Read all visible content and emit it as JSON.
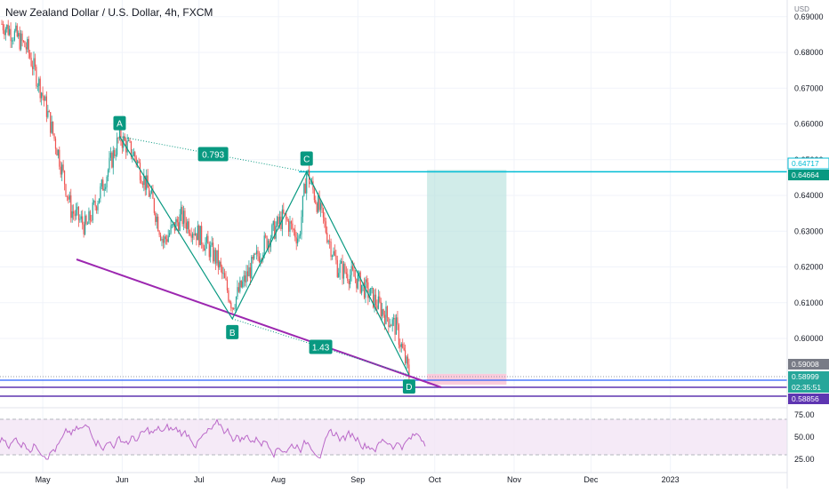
{
  "header": {
    "title": "New Zealand Dollar / U.S. Dollar, 4h, FXCM"
  },
  "axis": {
    "currency": "USD",
    "y_ticks": [
      "0.69000",
      "0.68000",
      "0.67000",
      "0.66000",
      "0.65000",
      "0.64000",
      "0.63000",
      "0.62000",
      "0.61000",
      "0.60000"
    ],
    "x_ticks": [
      "May",
      "Jun",
      "Jul",
      "Aug",
      "Sep",
      "Oct",
      "Nov",
      "Dec",
      "2023"
    ],
    "rsi_ticks": [
      "75.00",
      "50.00",
      "25.00"
    ]
  },
  "price_badges": {
    "target_upper": "0.64717",
    "target_lower": "0.64664",
    "last_close": "0.59008",
    "current": "0.58999",
    "countdown": "02:35:51",
    "stop": "0.58856"
  },
  "pattern_labels": {
    "A": "A",
    "B": "B",
    "C": "C",
    "D": "D",
    "ratio_ac": "0.793",
    "ratio_bd": "1.43"
  },
  "colors": {
    "bull": "#26a69a",
    "bear": "#ef5350",
    "pattern": "#089981",
    "trendline": "#9c27b0",
    "hline_blue": "#2962ff",
    "hline_cyan": "#00bcd4",
    "target_zone": "#b2dfdb",
    "stop_zone": "#f8bbd0",
    "rsi_line": "#ba68c8",
    "rsi_band": "#f3e5f5"
  },
  "chart_data": {
    "type": "line",
    "title": "New Zealand Dollar / U.S. Dollar, 4h, FXCM",
    "ylabel": "USD",
    "ylim": [
      0.585,
      0.691
    ],
    "x": [
      "2022-04-15",
      "2022-04-20",
      "2022-04-25",
      "2022-05-01",
      "2022-05-07",
      "2022-05-12",
      "2022-05-18",
      "2022-05-24",
      "2022-05-31",
      "2022-06-06",
      "2022-06-13",
      "2022-06-17",
      "2022-06-24",
      "2022-07-01",
      "2022-07-08",
      "2022-07-14",
      "2022-07-20",
      "2022-07-27",
      "2022-08-03",
      "2022-08-09",
      "2022-08-12",
      "2022-08-18",
      "2022-08-24",
      "2022-08-31",
      "2022-09-06",
      "2022-09-12",
      "2022-09-16",
      "2022-09-21"
    ],
    "series": [
      {
        "values": [
          0.688,
          0.685,
          0.681,
          0.668,
          0.652,
          0.636,
          0.631,
          0.642,
          0.6565,
          0.651,
          0.638,
          0.627,
          0.634,
          0.629,
          0.622,
          0.6095,
          0.618,
          0.627,
          0.634,
          0.628,
          0.6466,
          0.634,
          0.62,
          0.617,
          0.612,
          0.6065,
          0.603,
          0.5898
        ]
      }
    ],
    "harmonic_points": [
      {
        "label": "A",
        "date": "2022-05-31",
        "price": 0.6565
      },
      {
        "label": "B",
        "date": "2022-07-14",
        "price": 0.6055
      },
      {
        "label": "C",
        "date": "2022-08-12",
        "price": 0.6466
      },
      {
        "label": "D",
        "date": "2022-09-21",
        "price": 0.5898
      }
    ],
    "ratios": {
      "AC": 0.793,
      "BD": 1.43
    },
    "horizontal_lines": [
      0.64664,
      0.58999,
      0.5893,
      0.58856
    ],
    "position": {
      "entry": 0.5901,
      "target": 0.64717,
      "stop": 0.58856,
      "start": "2022-09-28",
      "end": "2022-10-29"
    },
    "rsi": {
      "upper": 70,
      "lower": 30,
      "ylim": [
        20,
        80
      ]
    },
    "x_ticks": [
      "May",
      "Jun",
      "Jul",
      "Aug",
      "Sep",
      "Oct",
      "Nov",
      "Dec",
      "2023"
    ],
    "y_ticks": [
      0.69,
      0.68,
      0.67,
      0.66,
      0.65,
      0.64,
      0.63,
      0.62,
      0.61,
      0.6
    ]
  }
}
